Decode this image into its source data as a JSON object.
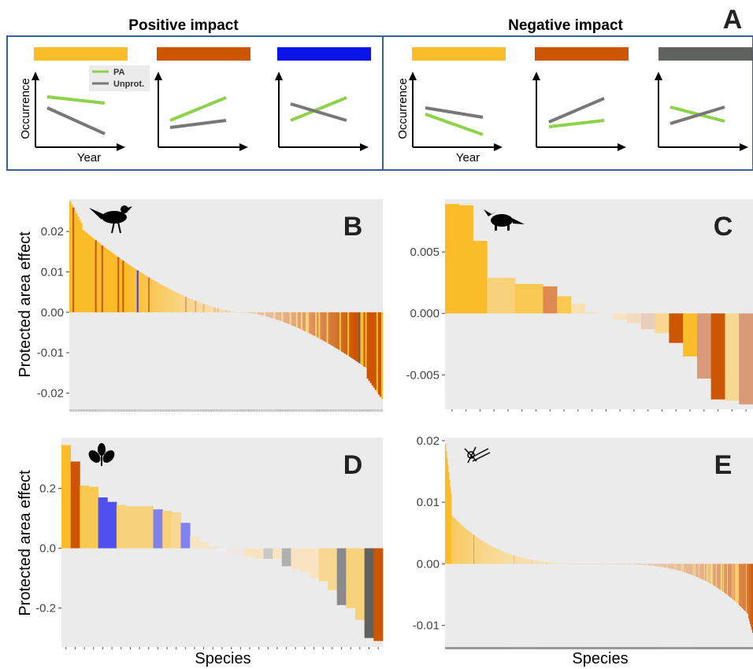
{
  "schematic": {
    "letter": "A",
    "positive_title": "Positive impact",
    "negative_title": "Negative impact",
    "y_label": "Occurrence",
    "x_label": "Year",
    "legend": [
      {
        "label": "PA",
        "color": "#8ed14b"
      },
      {
        "label": "Unprot.",
        "color": "#777777"
      }
    ],
    "positive_bars": [
      "#fbbc2a",
      "#cc5500",
      "#0a14e8"
    ],
    "negative_bars": [
      "#fbbc2a",
      "#cc5500",
      "#5f625f"
    ]
  },
  "shared_labels": {
    "y_axis_title": "Protected area effect",
    "x_axis_title": "Species"
  },
  "colors": {
    "panel_bg": "#ebebeb",
    "yellow": "#fbbc2a",
    "orange": "#cc5500",
    "blue": "#3c3cf0",
    "grey": "#5f625f"
  },
  "chart_data": [
    {
      "panel": "B",
      "type": "bar",
      "taxon_icon": "bird-icon",
      "ylim": [
        -0.024,
        0.028
      ],
      "yticks": [
        "0.02",
        "0.01",
        "0.00",
        "-0.01",
        "-0.02"
      ],
      "ytick_values": [
        0.02,
        0.01,
        0,
        -0.01,
        -0.02
      ],
      "n_species": 195,
      "max": 0.0275,
      "min": -0.0215,
      "profile": "sigmoid"
    },
    {
      "panel": "C",
      "type": "bar",
      "taxon_icon": "fox-icon",
      "ylim": [
        -0.0078,
        0.0093
      ],
      "yticks": [
        "0.005",
        "0.000",
        "-0.005"
      ],
      "ytick_values": [
        0.005,
        0,
        -0.005
      ],
      "values": [
        0.0089,
        0.0088,
        0.0059,
        0.0029,
        0.0029,
        0.0024,
        0.0024,
        0.0022,
        0.0014,
        0.0008,
        0.0001,
        0.0,
        -0.0005,
        -0.0008,
        -0.0013,
        -0.0016,
        -0.0024,
        -0.0035,
        -0.0053,
        -0.007,
        -0.0071,
        -0.0074
      ],
      "colors": [
        "#fbbc2a",
        "#fbbc2a",
        "#fbbc2a",
        "#f8d27a",
        "#f8d27a",
        "#f9c850",
        "#f9c850",
        "#dc8a50",
        "#f9c850",
        "#f8e0b0",
        "#f0e0c0",
        "#ebebeb",
        "#f8e4c0",
        "#f2dcc0",
        "#e6cfbc",
        "#f8d890",
        "#cc5500",
        "#fbbc2a",
        "#d89a78",
        "#cc5500",
        "#f8d890",
        "#d89a78"
      ]
    },
    {
      "panel": "D",
      "type": "bar",
      "taxon_icon": "leaf-icon",
      "ylim": [
        -0.33,
        0.37
      ],
      "yticks": [
        "0.2",
        "0.0",
        "-0.2"
      ],
      "ytick_values": [
        0.2,
        0,
        -0.2
      ],
      "values": [
        0.345,
        0.29,
        0.21,
        0.205,
        0.17,
        0.155,
        0.145,
        0.14,
        0.14,
        0.14,
        0.13,
        0.125,
        0.12,
        0.085,
        0.04,
        0.02,
        0.004,
        -0.01,
        -0.02,
        -0.025,
        -0.03,
        -0.035,
        -0.035,
        -0.035,
        -0.06,
        -0.07,
        -0.08,
        -0.1,
        -0.11,
        -0.14,
        -0.19,
        -0.2,
        -0.24,
        -0.3,
        -0.31
      ],
      "colors": [
        "#fbbc2a",
        "#cc5500",
        "#f9c850",
        "#f9c850",
        "#5050ee",
        "#5050ee",
        "#f8d27a",
        "#f8d27a",
        "#f8d27a",
        "#f8d27a",
        "#8080ee",
        "#f8d27a",
        "#f8d890",
        "#8080ee",
        "#f8e4c0",
        "#f8e4c0",
        "#f8e4c0",
        "#f0f0f0",
        "#f0e8e0",
        "#f0e8e0",
        "#f8e4c0",
        "#f8e4c0",
        "#c8c8c8",
        "#f8e4c0",
        "#b0b0b0",
        "#f8e4c0",
        "#f8e4c0",
        "#f8e4c0",
        "#f8d890",
        "#f8d890",
        "#8a8a8a",
        "#f8d27a",
        "#f8d27a",
        "#5f625f",
        "#cc5500"
      ]
    },
    {
      "panel": "E",
      "type": "bar",
      "taxon_icon": "bug-icon",
      "ylim": [
        -0.0135,
        0.0205
      ],
      "yticks": [
        "0.02",
        "0.01",
        "0.00",
        "-0.01"
      ],
      "ytick_values": [
        0.02,
        0.01,
        0,
        -0.01
      ],
      "n_species": 390,
      "max": 0.0195,
      "min": -0.0112,
      "profile": "steep-tails"
    }
  ]
}
